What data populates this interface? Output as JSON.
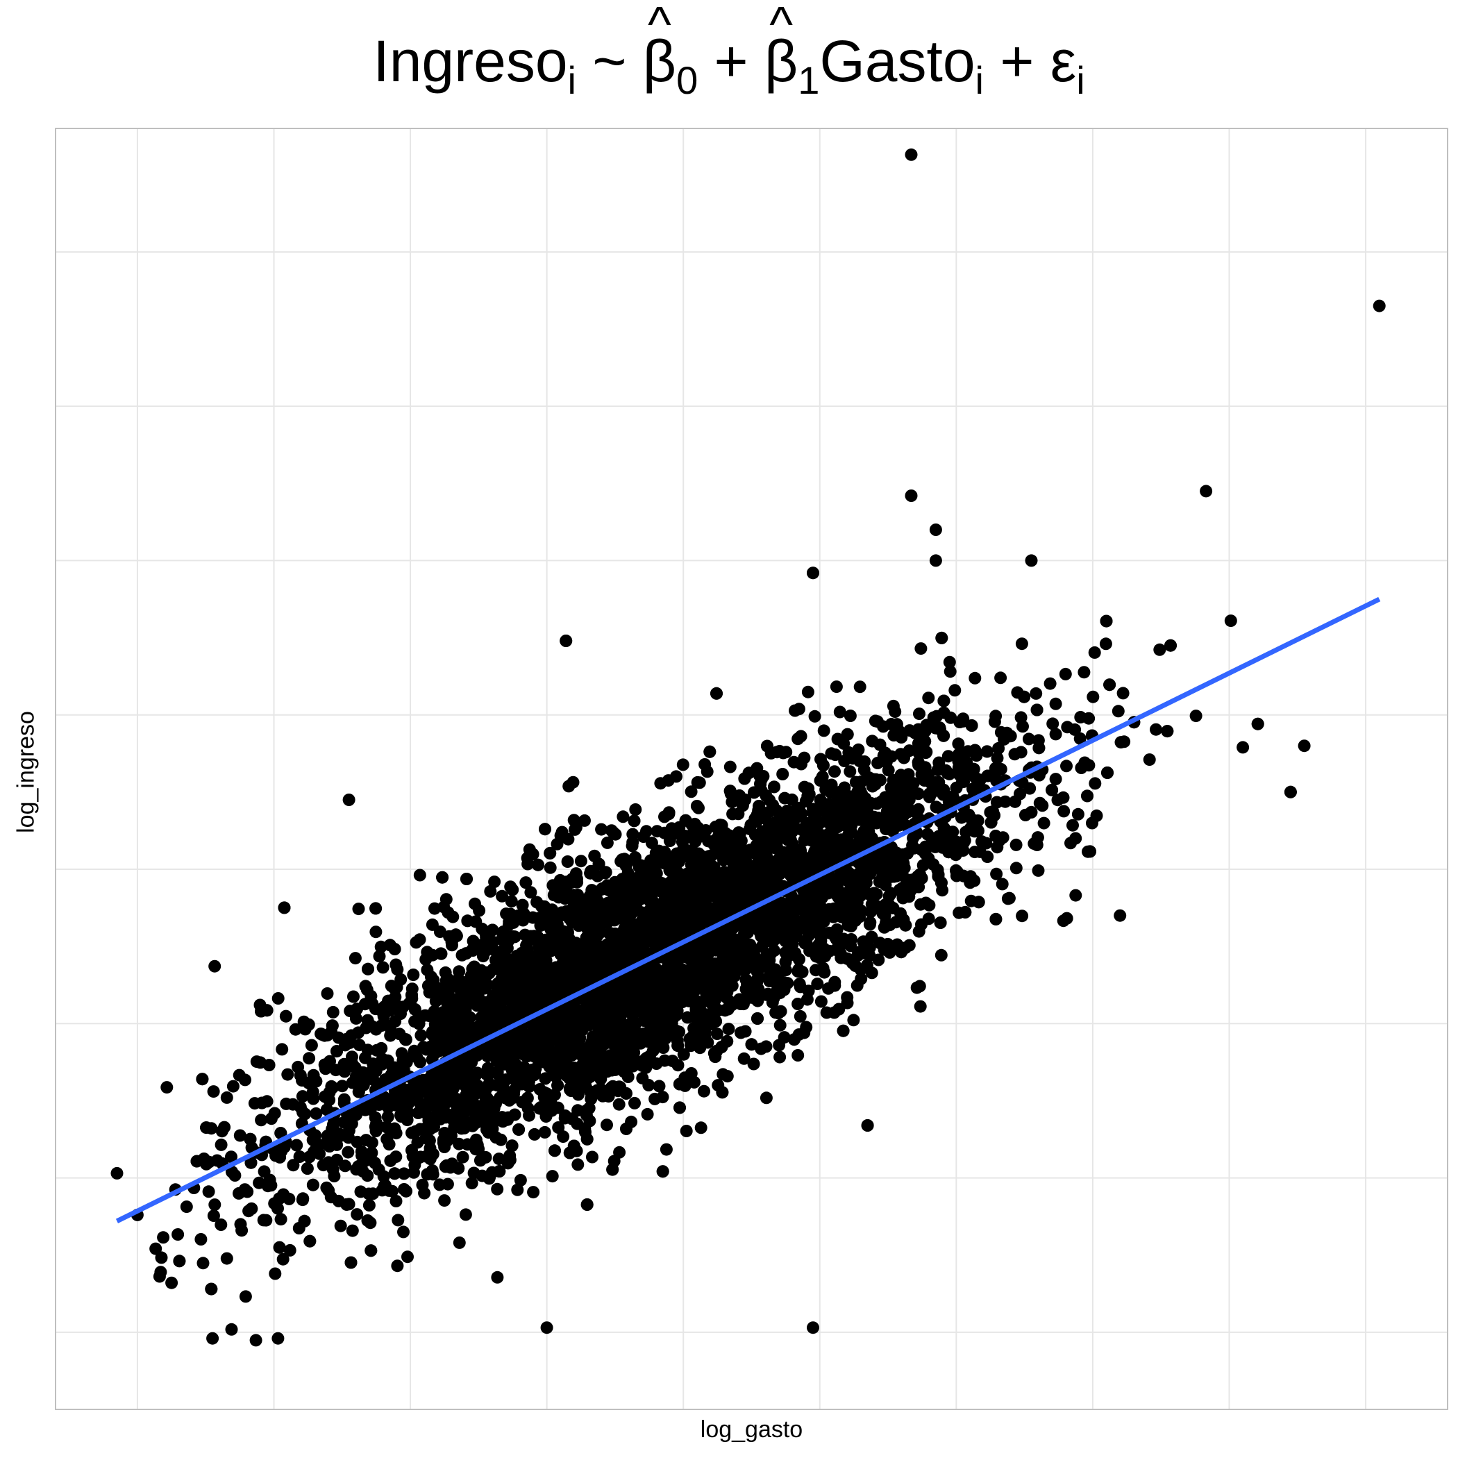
{
  "title": {
    "prefix": "Ingreso",
    "i": "i",
    "sep1": " ~ ",
    "beta": "β",
    "sub0": "0",
    "plus": " + ",
    "sub1": "1",
    "gasto": "Gasto",
    "plus2": " + ",
    "eps": "ε"
  },
  "chart_data": {
    "type": "scatter",
    "title": "Ingresoᵢ ~ β̂₀ + β̂₁Gastoᵢ + εᵢ",
    "xlabel": "log_gasto",
    "ylabel": "log_ingreso",
    "xlim": [
      -0.6,
      9.6
    ],
    "ylim": [
      -1.0,
      7.3
    ],
    "grid": true,
    "tick_labels_visible": false,
    "colors": {
      "points": "#000000",
      "fit_line": "#3366FF",
      "grid": "#e6e6e6",
      "panel_border": "#bfbfbf"
    },
    "fit_line": {
      "x": [
        -0.15,
        9.1
      ],
      "y": [
        0.22,
        4.25
      ]
    },
    "highlighted_points": {
      "x": [
        5.67,
        9.1,
        7.83,
        5.67,
        5.85,
        5.85,
        6.55,
        4.95,
        4.95,
        3.14,
        3.14,
        7.57,
        7.57,
        8.45,
        8.45,
        8.55,
        0.55,
        1.03,
        1.55,
        -0.15,
        0.0,
        0.17,
        0.25,
        1.55,
        2.36,
        3.0,
        4.95,
        5.35,
        5.35,
        8.1,
        7.2
      ],
      "y": [
        7.13,
        6.15,
        4.95,
        4.92,
        4.7,
        4.5,
        4.5,
        4.42,
        4.42,
        3.98,
        3.98,
        3.95,
        3.95,
        3.0,
        3.0,
        3.3,
        -0.54,
        -0.54,
        2.95,
        0.53,
        0.26,
        -0.11,
        -0.18,
        0.33,
        0.08,
        -0.47,
        -0.47,
        0.84,
        0.84,
        3.29,
        2.2
      ]
    },
    "cloud_description_points_by_x": {
      "x": [
        0.5,
        1.5,
        2.5,
        3.5,
        4.5,
        5.5,
        6.5,
        7.5
      ],
      "y_center": [
        0.6,
        1.2,
        1.7,
        2.15,
        2.6,
        3.0,
        3.45,
        3.9
      ]
    },
    "n_points_approx": 5000
  }
}
